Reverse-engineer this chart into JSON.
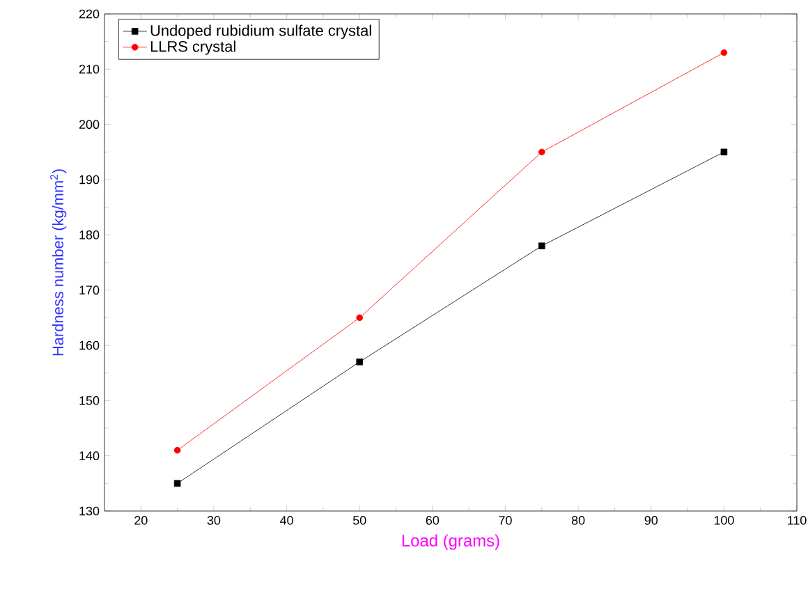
{
  "chart_data": {
    "type": "line",
    "xlabel": "Load (grams)",
    "ylabel": "Hardness number (kg/mm$^{2}$)",
    "x": [
      25,
      50,
      75,
      100
    ],
    "series": [
      {
        "name": "Undoped rubidium sulfate crystal",
        "color": "#000000",
        "marker": "square",
        "values": [
          135,
          157,
          178,
          195
        ]
      },
      {
        "name": "LLRS crystal",
        "color": "#ff0000",
        "marker": "circle",
        "values": [
          141,
          165,
          195,
          213
        ]
      }
    ],
    "xlim": [
      15,
      110
    ],
    "xticks": [
      20,
      30,
      40,
      50,
      60,
      70,
      80,
      90,
      100,
      110
    ],
    "ylim": [
      130,
      220
    ],
    "yticks": [
      130,
      140,
      150,
      160,
      170,
      180,
      190,
      200,
      210,
      220
    ],
    "legend": "top left",
    "line_style": "solid"
  }
}
